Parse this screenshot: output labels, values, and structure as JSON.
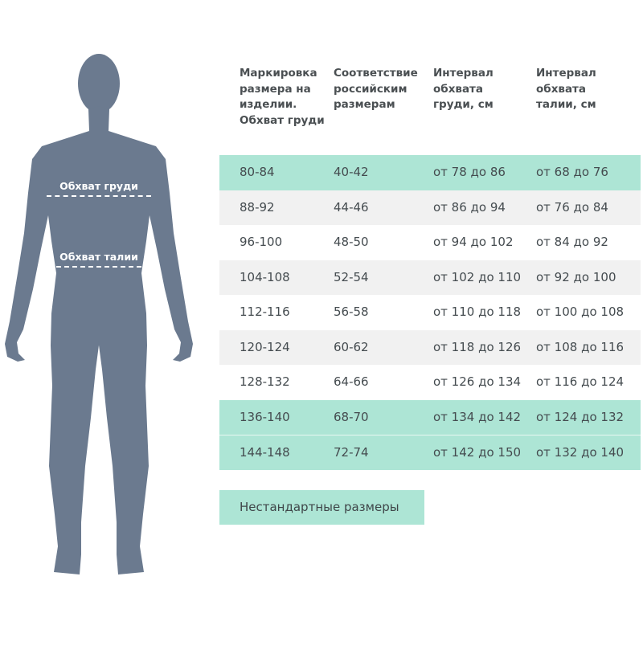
{
  "figure": {
    "chest_label": "Обхват груди",
    "waist_label": "Обхват талии",
    "color": "#6b7a8f"
  },
  "table": {
    "headers": [
      "Маркировка размера на изделии. Обхват груди",
      "Соответствие российским размерам",
      "Интервал обхвата груди, см",
      "Интервал обхвата талии, см"
    ],
    "rows": [
      {
        "cells": [
          "80-84",
          "40-42",
          "от 78 до 86",
          "от 68 до 76"
        ],
        "highlight": "teal"
      },
      {
        "cells": [
          "88-92",
          "44-46",
          "от 86 до 94",
          "от 76 до 84"
        ],
        "highlight": "gray"
      },
      {
        "cells": [
          "96-100",
          "48-50",
          "от 94 до 102",
          "от 84 до 92"
        ],
        "highlight": "none"
      },
      {
        "cells": [
          "104-108",
          "52-54",
          "от 102 до 110",
          "от 92 до 100"
        ],
        "highlight": "gray"
      },
      {
        "cells": [
          "112-116",
          "56-58",
          "от 110 до 118",
          "от 100 до 108"
        ],
        "highlight": "none"
      },
      {
        "cells": [
          "120-124",
          "60-62",
          "от 118 до 126",
          "от 108 до 116"
        ],
        "highlight": "gray"
      },
      {
        "cells": [
          "128-132",
          "64-66",
          "от 126 до 134",
          "от 116 до 124"
        ],
        "highlight": "none"
      },
      {
        "cells": [
          "136-140",
          "68-70",
          "от 134 до 142",
          "от 124 до 132"
        ],
        "highlight": "teal"
      },
      {
        "cells": [
          "144-148",
          "72-74",
          "от 142 до 150",
          "от 132 до 140"
        ],
        "highlight": "teal"
      }
    ],
    "colors": {
      "teal": "#ade5d5",
      "gray": "#f1f1f1"
    }
  },
  "nonstandard_button": "Нестандартные размеры"
}
